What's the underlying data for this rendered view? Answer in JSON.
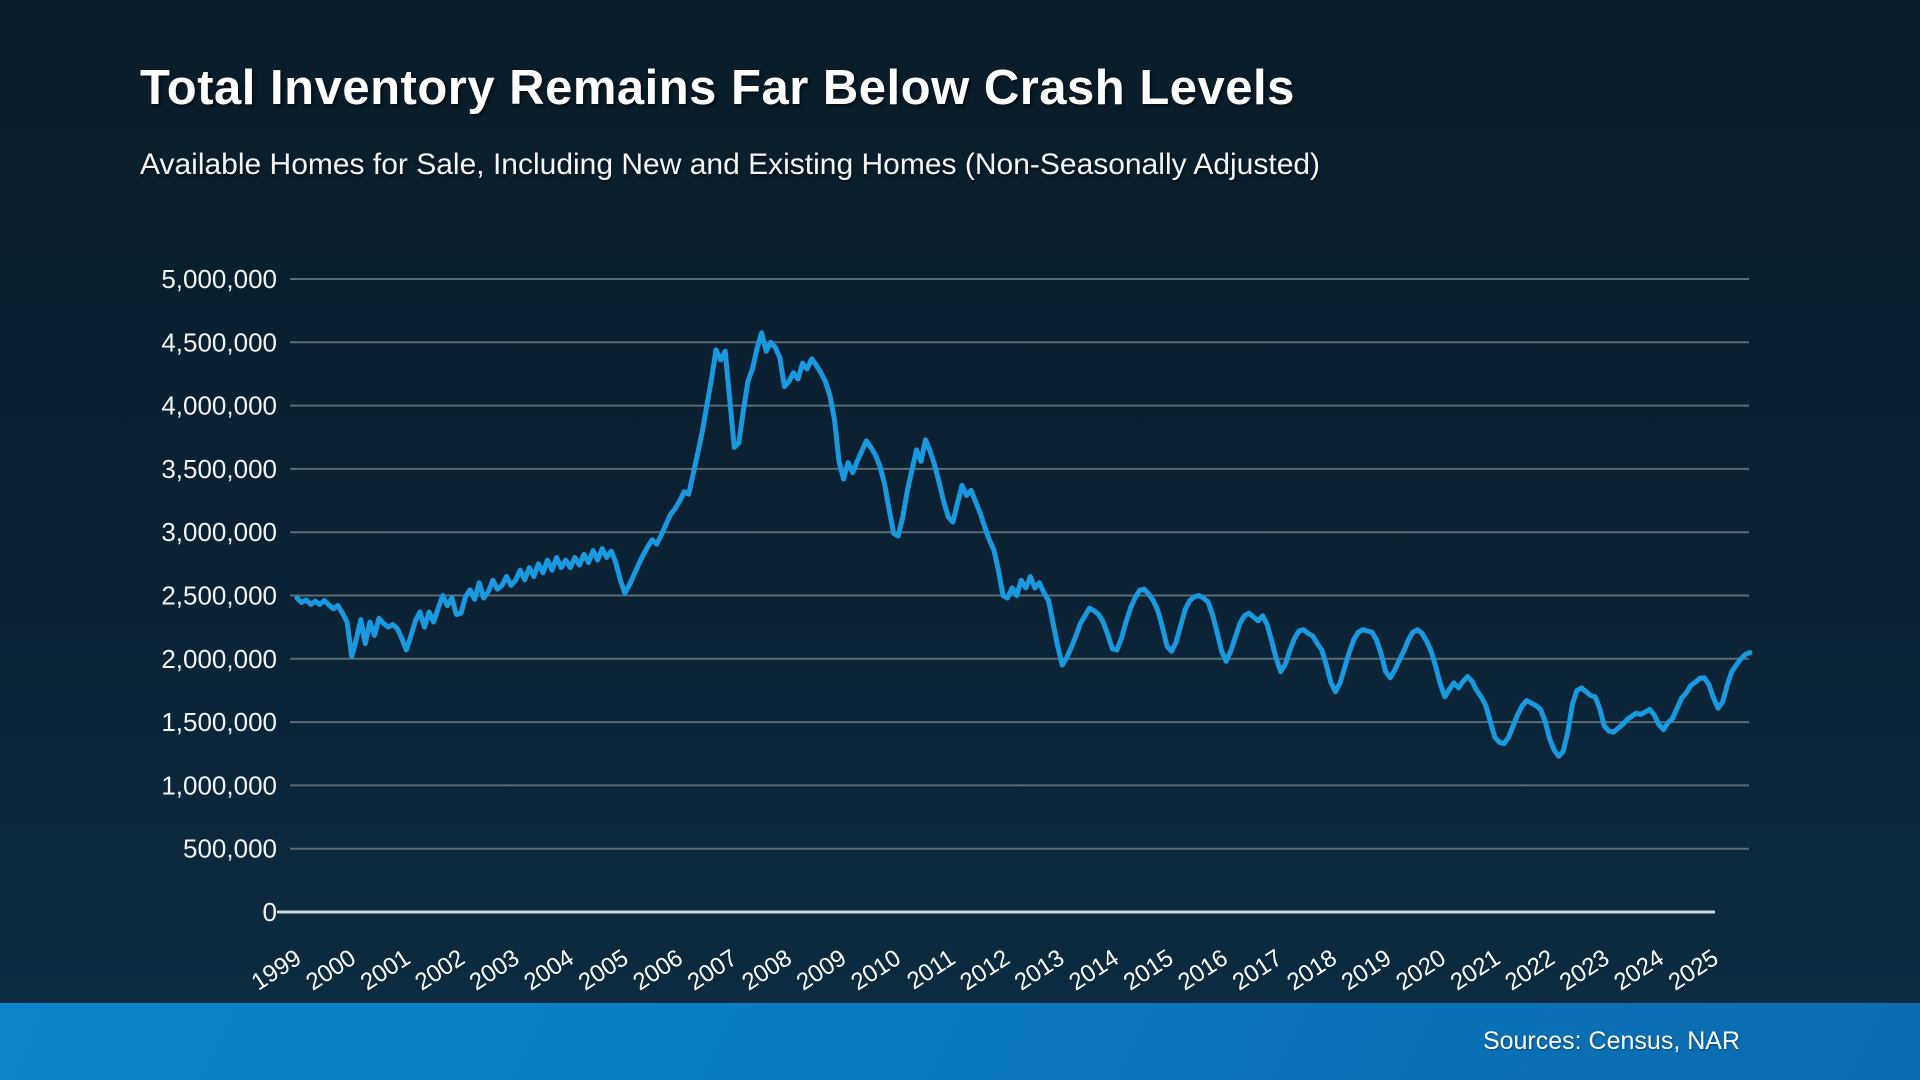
{
  "header": {
    "title": "Total Inventory Remains Far Below Crash Levels",
    "subtitle": "Available Homes for Sale, Including New and Existing Homes (Non-Seasonally Adjusted)"
  },
  "footer": {
    "sources": "Sources: Census, NAR"
  },
  "chart_data": {
    "type": "line",
    "title": "Total Inventory Remains Far Below Crash Levels",
    "subtitle": "Available Homes for Sale, Including New and Existing Homes (Non-Seasonally Adjusted)",
    "grid": "horizontal",
    "legend_position": "none",
    "x_axis": {
      "tick_labels": [
        "1999",
        "2000",
        "2001",
        "2002",
        "2003",
        "2004",
        "2005",
        "2006",
        "2007",
        "2008",
        "2009",
        "2010",
        "2011",
        "2012",
        "2013",
        "2014",
        "2015",
        "2016",
        "2017",
        "2018",
        "2019",
        "2020",
        "2021",
        "2022",
        "2023",
        "2024",
        "2025"
      ],
      "start_month": "1999-01",
      "end_month": "2025-08",
      "label_rotation_deg": -33
    },
    "y_axis": {
      "tick_labels": [
        "0",
        "500,000",
        "1,000,000",
        "1,500,000",
        "2,000,000",
        "2,500,000",
        "3,000,000",
        "3,500,000",
        "4,000,000",
        "4,500,000",
        "5,000,000"
      ],
      "tick_values_thousands": [
        0,
        500,
        1000,
        1500,
        2000,
        2500,
        3000,
        3500,
        4000,
        4500,
        5000
      ],
      "range_thousands": [
        0,
        5000
      ]
    },
    "series": [
      {
        "name": "Total Inventory (homes for sale)",
        "unit": "homes, values in thousands, monthly Jan 1999 - Aug 2025",
        "values": [
          2480,
          2445,
          2465,
          2430,
          2455,
          2430,
          2460,
          2425,
          2395,
          2420,
          2360,
          2290,
          2020,
          2150,
          2310,
          2120,
          2290,
          2185,
          2320,
          2280,
          2250,
          2270,
          2240,
          2160,
          2070,
          2180,
          2300,
          2370,
          2250,
          2370,
          2290,
          2400,
          2500,
          2420,
          2480,
          2350,
          2360,
          2490,
          2545,
          2470,
          2600,
          2480,
          2530,
          2620,
          2550,
          2580,
          2650,
          2580,
          2620,
          2700,
          2625,
          2720,
          2650,
          2750,
          2680,
          2780,
          2700,
          2800,
          2720,
          2780,
          2720,
          2800,
          2740,
          2825,
          2760,
          2855,
          2780,
          2870,
          2800,
          2850,
          2760,
          2620,
          2520,
          2585,
          2665,
          2745,
          2820,
          2885,
          2940,
          2905,
          2980,
          3060,
          3140,
          3185,
          3245,
          3320,
          3300,
          3465,
          3625,
          3800,
          4005,
          4210,
          4440,
          4360,
          4430,
          4050,
          3670,
          3705,
          3960,
          4190,
          4290,
          4450,
          4575,
          4430,
          4500,
          4460,
          4380,
          4150,
          4190,
          4260,
          4210,
          4335,
          4290,
          4370,
          4320,
          4260,
          4190,
          4080,
          3890,
          3560,
          3420,
          3550,
          3470,
          3560,
          3640,
          3720,
          3670,
          3610,
          3520,
          3380,
          3180,
          2990,
          2970,
          3120,
          3330,
          3490,
          3650,
          3560,
          3730,
          3640,
          3530,
          3390,
          3240,
          3120,
          3080,
          3230,
          3370,
          3290,
          3330,
          3240,
          3150,
          3040,
          2940,
          2860,
          2700,
          2500,
          2480,
          2560,
          2500,
          2620,
          2560,
          2650,
          2560,
          2600,
          2520,
          2460,
          2280,
          2100,
          1950,
          2010,
          2090,
          2180,
          2280,
          2340,
          2400,
          2380,
          2350,
          2290,
          2190,
          2080,
          2070,
          2160,
          2290,
          2400,
          2480,
          2540,
          2550,
          2510,
          2460,
          2380,
          2250,
          2100,
          2060,
          2130,
          2260,
          2390,
          2460,
          2490,
          2500,
          2480,
          2450,
          2350,
          2210,
          2060,
          1980,
          2060,
          2170,
          2280,
          2340,
          2360,
          2330,
          2300,
          2340,
          2270,
          2140,
          2000,
          1900,
          1960,
          2070,
          2160,
          2220,
          2230,
          2200,
          2180,
          2120,
          2070,
          1950,
          1810,
          1740,
          1810,
          1930,
          2050,
          2150,
          2210,
          2230,
          2220,
          2210,
          2150,
          2040,
          1900,
          1850,
          1910,
          1990,
          2060,
          2150,
          2210,
          2230,
          2200,
          2140,
          2060,
          1940,
          1800,
          1700,
          1760,
          1810,
          1770,
          1820,
          1860,
          1820,
          1750,
          1700,
          1630,
          1500,
          1380,
          1340,
          1330,
          1380,
          1470,
          1560,
          1630,
          1670,
          1650,
          1630,
          1600,
          1510,
          1370,
          1280,
          1230,
          1270,
          1420,
          1640,
          1750,
          1770,
          1740,
          1710,
          1700,
          1610,
          1470,
          1430,
          1420,
          1450,
          1480,
          1520,
          1545,
          1570,
          1560,
          1580,
          1600,
          1555,
          1480,
          1440,
          1495,
          1530,
          1610,
          1690,
          1730,
          1790,
          1815,
          1845,
          1850,
          1795,
          1690,
          1610,
          1660,
          1790,
          1900,
          1950,
          2000,
          2035,
          2050
        ]
      }
    ],
    "style": {
      "line_color": "#1899e0",
      "gridline_color": "#5c6a73",
      "axis_line_color": "#ccd6dc",
      "label_color": "#f2f5f7",
      "background_top": "#0a1c29",
      "background_bottom": "#0c2d42",
      "footer_band_color": "#0b7cc2"
    }
  }
}
